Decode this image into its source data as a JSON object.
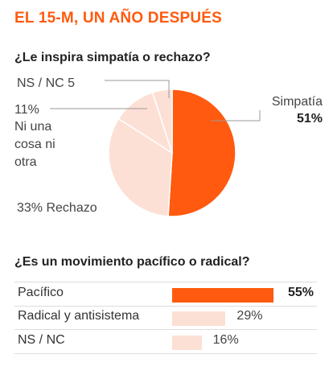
{
  "header": {
    "title": "EL 15-M, UN AÑO DESPUÉS"
  },
  "colors": {
    "accent": "#ff5a0f",
    "light": "#fde0d5",
    "line": "#999999"
  },
  "chart_data": [
    {
      "type": "pie",
      "title": "¿Le inspira simpatía o rechazo?",
      "slices": [
        {
          "name": "Simpatía",
          "value": 51,
          "value_label": "51%"
        },
        {
          "name": "Rechazo",
          "value": 33,
          "value_label": "33%"
        },
        {
          "name": "Ni una cosa ni otra",
          "value": 11,
          "value_label": "11%"
        },
        {
          "name": "NS / NC",
          "value": 5,
          "value_label": "5"
        }
      ],
      "labels": {
        "simpatia_name": "Simpatía",
        "simpatia_pct": "51%",
        "rechazo": "33% Rechazo",
        "ni_pct": "11%",
        "ni_l1": "Ni una",
        "ni_l2": "cosa ni",
        "ni_l3": "otra",
        "nsnc": "NS / NC 5"
      }
    },
    {
      "type": "bar",
      "title": "¿Es un movimiento pacífico o radical?",
      "categories": [
        "Pacífico",
        "Radical y antisistema",
        "NS / NC"
      ],
      "values": [
        55,
        29,
        16
      ],
      "value_labels": [
        "55%",
        "29%",
        "16%"
      ]
    }
  ]
}
